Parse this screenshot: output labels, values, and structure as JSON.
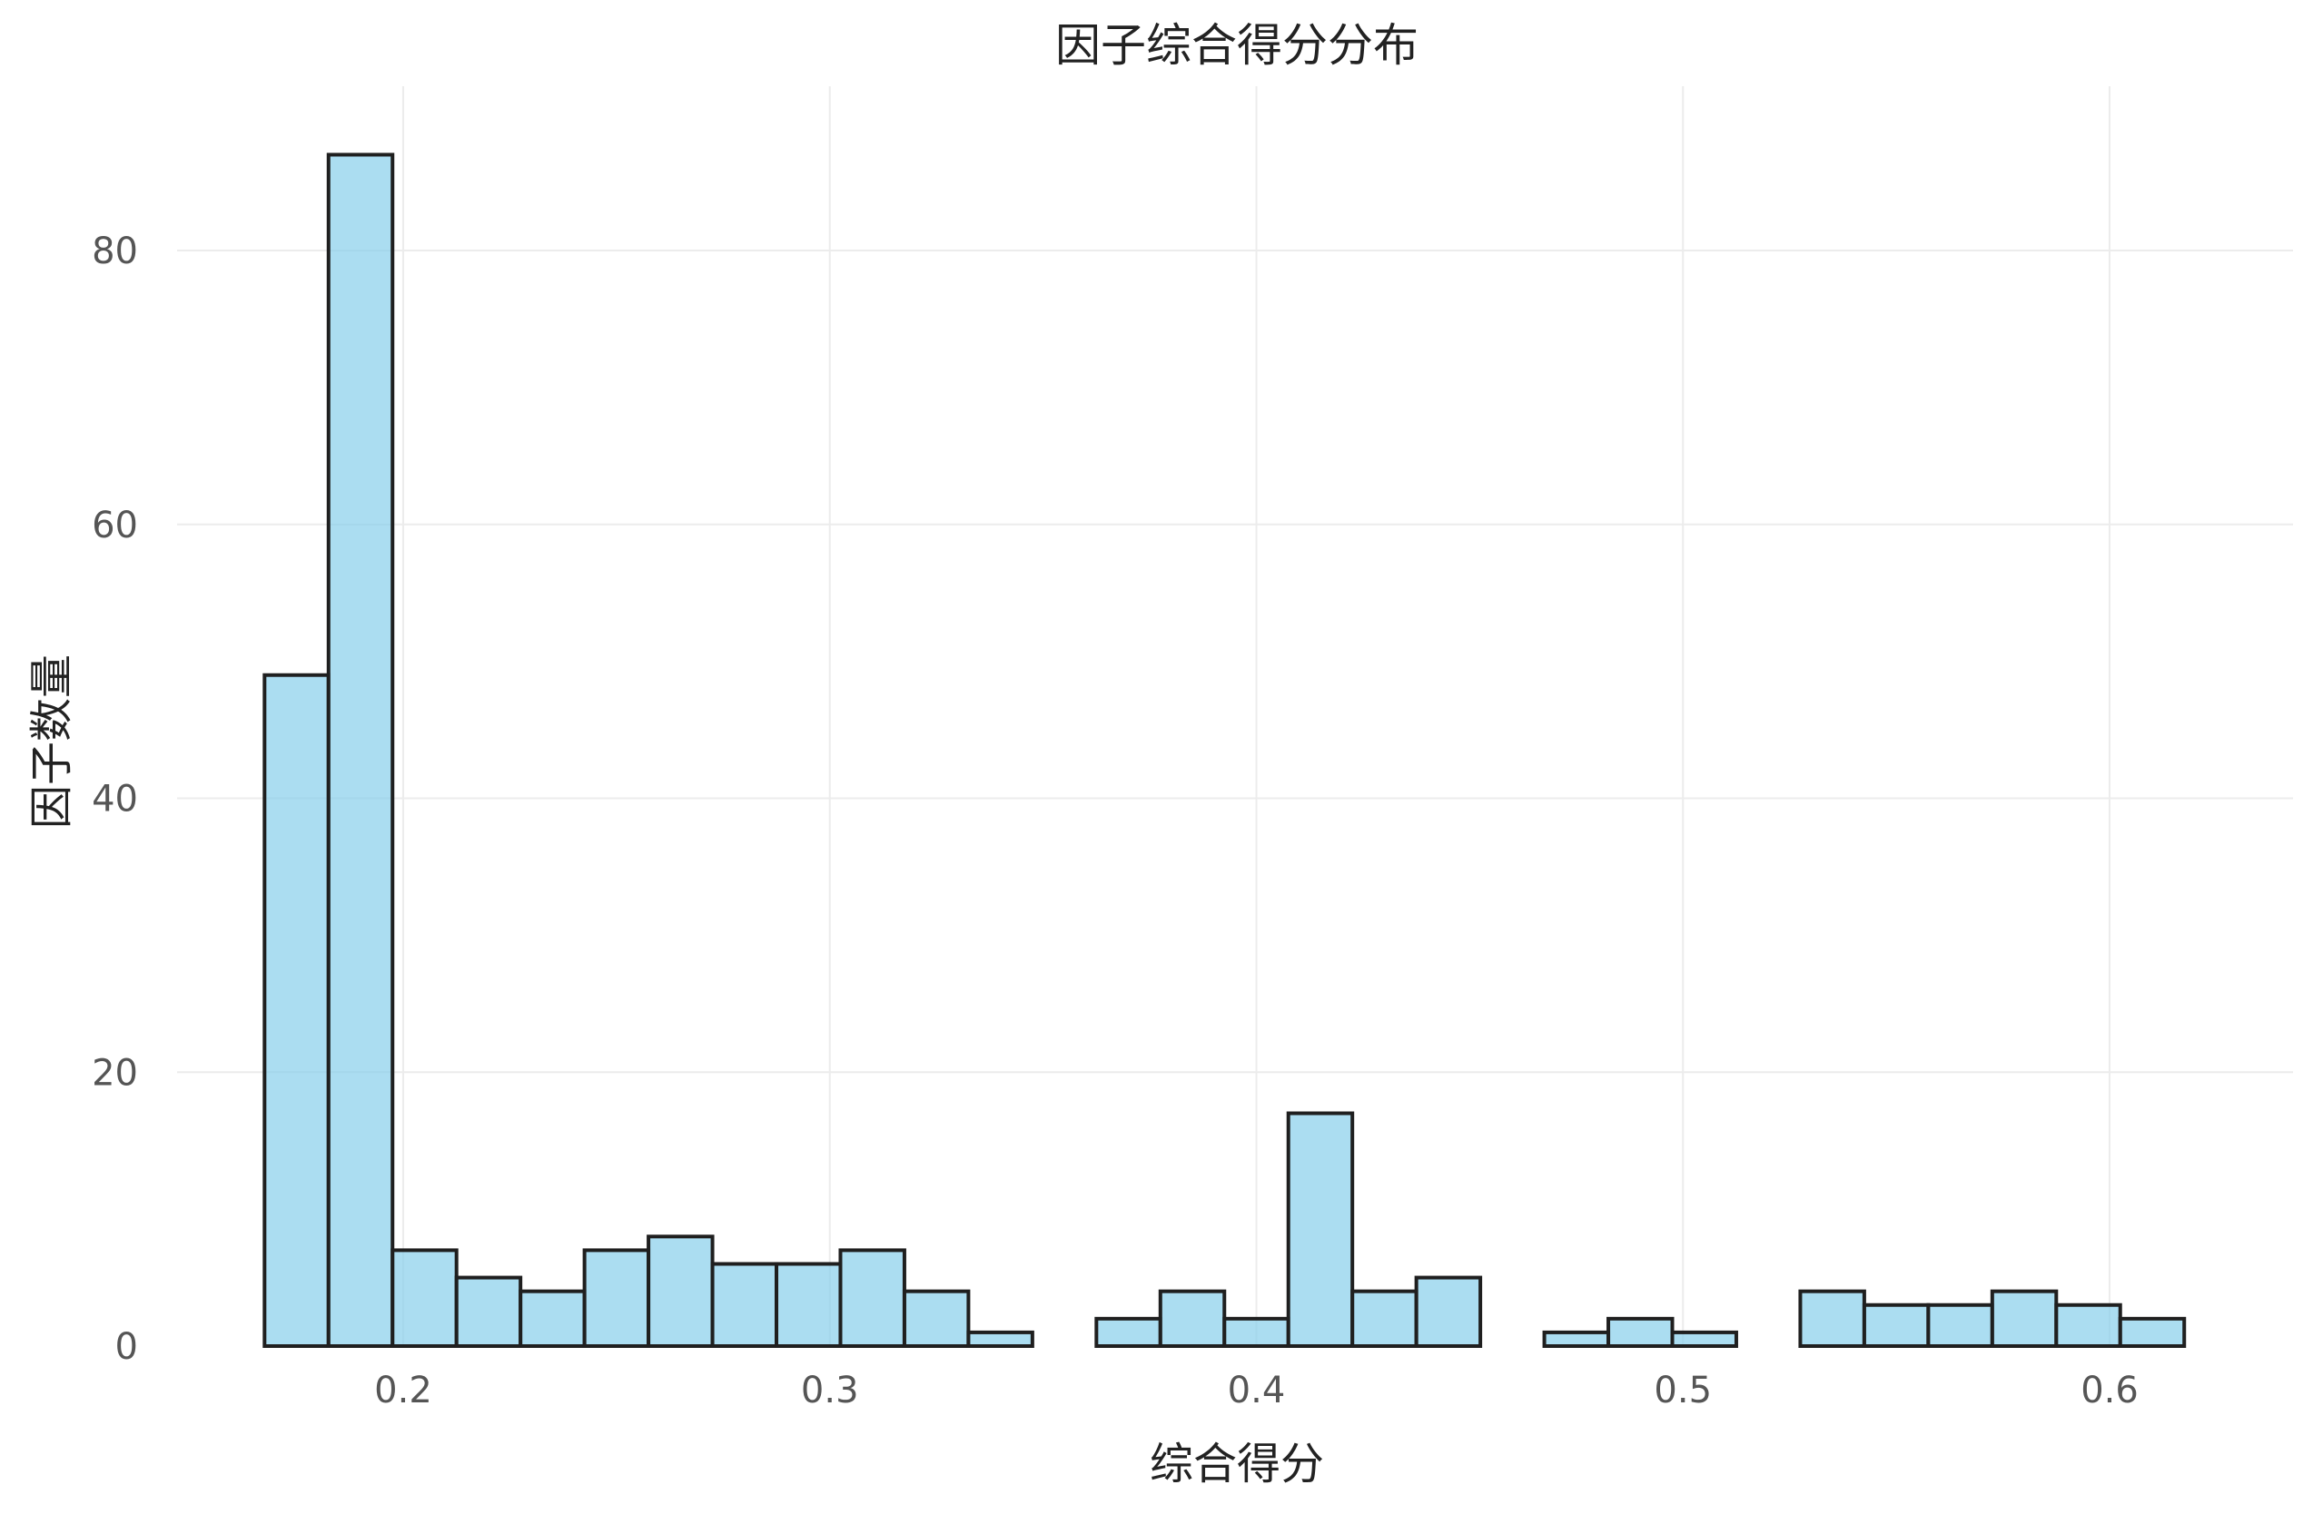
{
  "chart_data": {
    "type": "bar",
    "subtype": "histogram",
    "title": "因子综合得分分布",
    "xlabel": "综合得分",
    "ylabel": "因子数量",
    "xlim": [
      0.147,
      0.643
    ],
    "ylim": [
      0,
      92
    ],
    "x_ticks": [
      {
        "value": 0.2,
        "label": "0.2"
      },
      {
        "value": 0.3,
        "label": "0.3"
      },
      {
        "value": 0.4,
        "label": "0.4"
      },
      {
        "value": 0.5,
        "label": "0.5"
      },
      {
        "value": 0.6,
        "label": "0.6"
      }
    ],
    "y_ticks": [
      {
        "value": 0,
        "label": "0"
      },
      {
        "value": 20,
        "label": "20"
      },
      {
        "value": 40,
        "label": "40"
      },
      {
        "value": 60,
        "label": "60"
      },
      {
        "value": 80,
        "label": "80"
      }
    ],
    "bin_start": 0.1675,
    "bin_width": 0.015,
    "counts": [
      49,
      87,
      7,
      5,
      4,
      7,
      8,
      6,
      6,
      7,
      4,
      1,
      0,
      2,
      4,
      2,
      17,
      4,
      5,
      0,
      1,
      2,
      1,
      0,
      4,
      3,
      3,
      4,
      3,
      2
    ],
    "grid": true,
    "colors": {
      "bar_fill": "#87ceeb",
      "bar_edge": "#1f1f1f",
      "grid": "#ececec"
    }
  }
}
